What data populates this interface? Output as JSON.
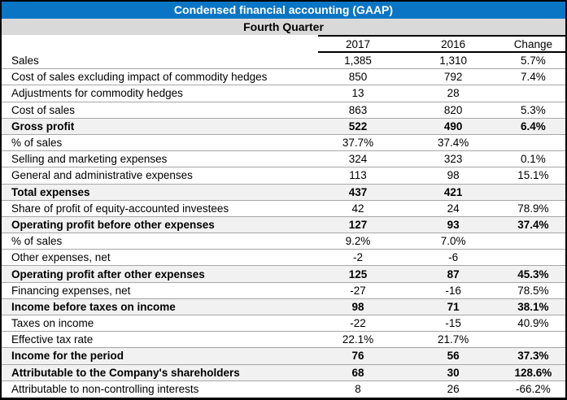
{
  "title": "Condensed financial accounting (GAAP)",
  "subtitle": "Fourth Quarter",
  "columns": [
    "2017",
    "2016",
    "Change"
  ],
  "colors": {
    "title_bg": "#0B75C5",
    "title_text": "#FFFFFF",
    "subtitle_bg": "#D9D9D9",
    "emphasis_row_bg": "#F1F1F1",
    "row_divider": "#A6A6A6",
    "table_border": "#000000"
  },
  "rows": [
    {
      "label": "Sales",
      "y2017": "1,385",
      "y2016": "1,310",
      "change": "5.7%",
      "emphasis": false
    },
    {
      "label": "Cost of sales excluding impact of commodity hedges",
      "y2017": "850",
      "y2016": "792",
      "change": "7.4%",
      "emphasis": false
    },
    {
      "label": "Adjustments for commodity hedges",
      "y2017": "13",
      "y2016": "28",
      "change": "",
      "emphasis": false
    },
    {
      "label": "Cost of sales",
      "y2017": "863",
      "y2016": "820",
      "change": "5.3%",
      "emphasis": false
    },
    {
      "label": "Gross profit",
      "y2017": "522",
      "y2016": "490",
      "change": "6.4%",
      "emphasis": true
    },
    {
      "label": "% of sales",
      "y2017": "37.7%",
      "y2016": "37.4%",
      "change": "",
      "emphasis": false
    },
    {
      "label": "Selling and marketing expenses",
      "y2017": "324",
      "y2016": "323",
      "change": "0.1%",
      "emphasis": false
    },
    {
      "label": "General and administrative expenses",
      "y2017": "113",
      "y2016": "98",
      "change": "15.1%",
      "emphasis": false
    },
    {
      "label": "Total expenses",
      "y2017": "437",
      "y2016": "421",
      "change": "",
      "emphasis": true
    },
    {
      "label": "Share of profit of equity-accounted investees",
      "y2017": "42",
      "y2016": "24",
      "change": "78.9%",
      "emphasis": false
    },
    {
      "label": "Operating profit before other expenses",
      "y2017": "127",
      "y2016": "93",
      "change": "37.4%",
      "emphasis": true
    },
    {
      "label": "% of sales",
      "y2017": "9.2%",
      "y2016": "7.0%",
      "change": "",
      "emphasis": false
    },
    {
      "label": "Other expenses, net",
      "y2017": "-2",
      "y2016": "-6",
      "change": "",
      "emphasis": false
    },
    {
      "label": "Operating profit after other expenses",
      "y2017": "125",
      "y2016": "87",
      "change": "45.3%",
      "emphasis": true
    },
    {
      "label": "Financing expenses, net",
      "y2017": "-27",
      "y2016": "-16",
      "change": "78.5%",
      "emphasis": false
    },
    {
      "label": "Income before taxes on income",
      "y2017": "98",
      "y2016": "71",
      "change": "38.1%",
      "emphasis": true
    },
    {
      "label": "Taxes on income",
      "y2017": "-22",
      "y2016": "-15",
      "change": "40.9%",
      "emphasis": false
    },
    {
      "label": "Effective tax rate",
      "y2017": "22.1%",
      "y2016": "21.7%",
      "change": "",
      "emphasis": false
    },
    {
      "label": "Income for the period",
      "y2017": "76",
      "y2016": "56",
      "change": "37.3%",
      "emphasis": true
    },
    {
      "label": "Attributable to the Company's shareholders",
      "y2017": "68",
      "y2016": "30",
      "change": "128.6%",
      "emphasis": true
    },
    {
      "label": "Attributable to non-controlling interests",
      "y2017": "8",
      "y2016": "26",
      "change": "-66.2%",
      "emphasis": false
    }
  ]
}
